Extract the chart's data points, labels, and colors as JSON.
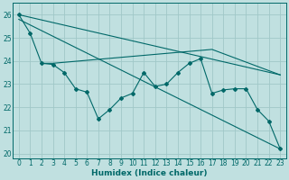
{
  "xlabel": "Humidex (Indice chaleur)",
  "bg_color": "#c0e0e0",
  "grid_color": "#a0c8c8",
  "line_color": "#006868",
  "xlim": [
    -0.5,
    23.5
  ],
  "ylim": [
    19.8,
    26.5
  ],
  "yticks": [
    20,
    21,
    22,
    23,
    24,
    25,
    26
  ],
  "xticks": [
    0,
    1,
    2,
    3,
    4,
    5,
    6,
    7,
    8,
    9,
    10,
    11,
    12,
    13,
    14,
    15,
    16,
    17,
    18,
    19,
    20,
    21,
    22,
    23
  ],
  "series_main": {
    "x": [
      0,
      1,
      2,
      3,
      4,
      5,
      6,
      7,
      8,
      9,
      10,
      11,
      12,
      13,
      14,
      15,
      16,
      17,
      18,
      19,
      20,
      21,
      22,
      23
    ],
    "y": [
      26.0,
      25.2,
      23.9,
      23.85,
      23.5,
      22.8,
      22.65,
      21.5,
      21.9,
      22.4,
      22.6,
      23.5,
      22.9,
      23.0,
      23.5,
      23.9,
      24.1,
      22.6,
      22.75,
      22.8,
      22.8,
      21.9,
      21.4,
      20.2
    ]
  },
  "line_top": {
    "x": [
      0,
      23
    ],
    "y": [
      26.0,
      23.4
    ]
  },
  "line_diag": {
    "x": [
      0,
      23
    ],
    "y": [
      25.8,
      20.2
    ]
  },
  "line_mid": {
    "x": [
      2,
      3,
      17,
      23
    ],
    "y": [
      23.9,
      23.9,
      24.5,
      23.4
    ]
  }
}
